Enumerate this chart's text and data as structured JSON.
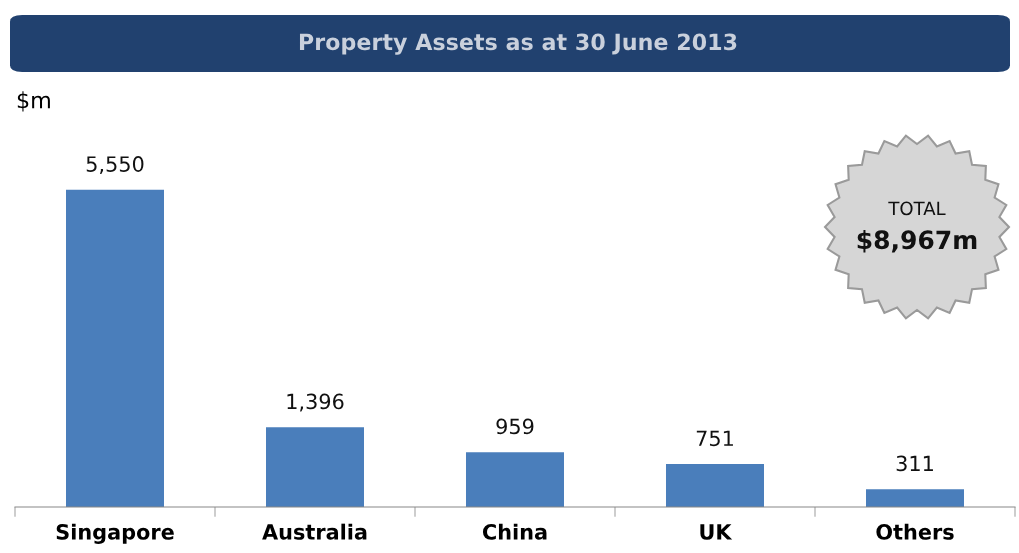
{
  "chart_data": {
    "type": "bar",
    "title": "Property Assets as at 30 June 2013",
    "ylabel": "$m",
    "categories": [
      "Singapore",
      "Australia",
      "China",
      "UK",
      "Others"
    ],
    "values": [
      5550,
      1396,
      959,
      751,
      311
    ],
    "color": "#4a7ebb",
    "value_labels": [
      "5,550",
      "1,396",
      "959",
      "751",
      "311"
    ],
    "grid": false,
    "legend": false,
    "annotations": [
      "TOTAL",
      "$8,967m"
    ]
  }
}
